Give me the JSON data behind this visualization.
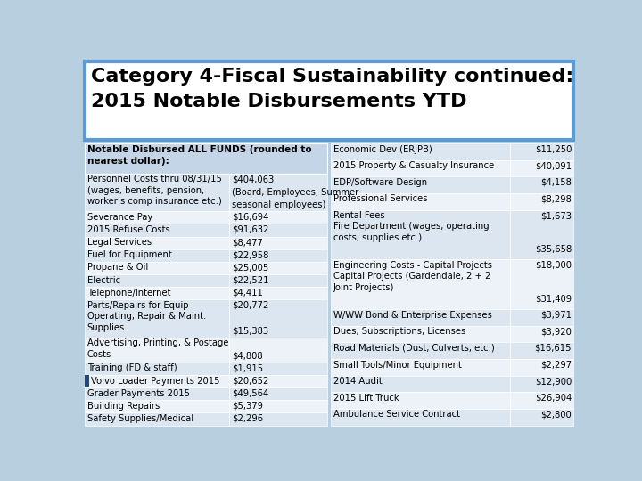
{
  "title_line1": "Category 4-Fiscal Sustainability continued:",
  "title_line2": "2015 Notable Disbursements YTD",
  "header_text": "Notable Disbursed ALL FUNDS (rounded to\nnearest dollar):",
  "left_rows": [
    {
      "label": "Personnel Costs thru 08/31/15",
      "label2": "(wages, benefits, pension,\nworker’s comp insurance etc.)",
      "val": "$404,063",
      "val2": "(Board, Employees, Summer\nseasonal employees)",
      "lines": 3
    },
    {
      "label": "Severance Pay",
      "val": "$16,694",
      "lines": 1
    },
    {
      "label": "2015 Refuse Costs",
      "val": "$91,632",
      "lines": 1
    },
    {
      "label": "Legal Services",
      "val": "$8,477",
      "lines": 1
    },
    {
      "label": "Fuel for Equipment",
      "val": "$22,958",
      "lines": 1
    },
    {
      "label": "Propane & Oil",
      "val": "$25,005",
      "lines": 1
    },
    {
      "label": "Electric",
      "val": "$22,521",
      "lines": 1
    },
    {
      "label": "Telephone/Internet",
      "val": "$4,411",
      "lines": 1
    },
    {
      "label": "Parts/Repairs for Equip\nOperating, Repair & Maint.\nSupplies",
      "val": "$20,772\n\n$15,383",
      "lines": 3
    },
    {
      "label": "Advertising, Printing, & Postage\nCosts",
      "val": "\n$4,808",
      "lines": 2
    },
    {
      "label": "Training (FD & staff)",
      "val": "$1,915",
      "lines": 1
    },
    {
      "label": "Volvo Loader Payments 2015",
      "val": "$20,652",
      "lines": 1,
      "marker": true
    },
    {
      "label": "Grader Payments 2015",
      "val": "$49,564",
      "lines": 1
    },
    {
      "label": "Building Repairs",
      "val": "$5,379",
      "lines": 1
    },
    {
      "label": "Safety Supplies/Medical",
      "val": "$2,296",
      "lines": 1
    }
  ],
  "right_rows": [
    {
      "label": "Economic Dev (ERJPB)",
      "val": "$11,250",
      "lines": 1
    },
    {
      "label": "2015 Property & Casualty Insurance",
      "val": "$40,091",
      "lines": 1
    },
    {
      "label": "EDP/Software Design",
      "val": "$4,158",
      "lines": 1
    },
    {
      "label": "Professional Services",
      "val": "$8,298",
      "lines": 1
    },
    {
      "label": "Rental Fees\nFire Department (wages, operating\ncosts, supplies etc.)",
      "val": "$1,673\n\n$35,658",
      "lines": 3
    },
    {
      "label": "Engineering Costs - Capital Projects\nCapital Projects (Gardendale, 2 + 2\nJoint Projects)",
      "val": "$18,000\n\n$31,409",
      "lines": 3
    },
    {
      "label": "W/WW Bond & Enterprise Expenses",
      "val": "$3,971",
      "lines": 1
    },
    {
      "label": "Dues, Subscriptions, Licenses",
      "val": "$3,920",
      "lines": 1
    },
    {
      "label": "Road Materials (Dust, Culverts, etc.)",
      "val": "$16,615",
      "lines": 1
    },
    {
      "label": "Small Tools/Minor Equipment",
      "val": "$2,297",
      "lines": 1
    },
    {
      "label": "2014 Audit",
      "val": "$12,900",
      "lines": 1
    },
    {
      "label": "2015 Lift Truck",
      "val": "$26,904",
      "lines": 1
    },
    {
      "label": "Ambulance Service Contract",
      "val": "$2,800",
      "lines": 1
    }
  ],
  "bg_color": "#b8cfe0",
  "title_bg": "#ffffff",
  "title_border": "#5b9bd5",
  "header_bg": "#c5d5e8",
  "row_even": "#dce6f1",
  "row_odd": "#edf2f8",
  "marker_color": "#1f497d",
  "title_font_size": 16,
  "cell_font_size": 7.2
}
